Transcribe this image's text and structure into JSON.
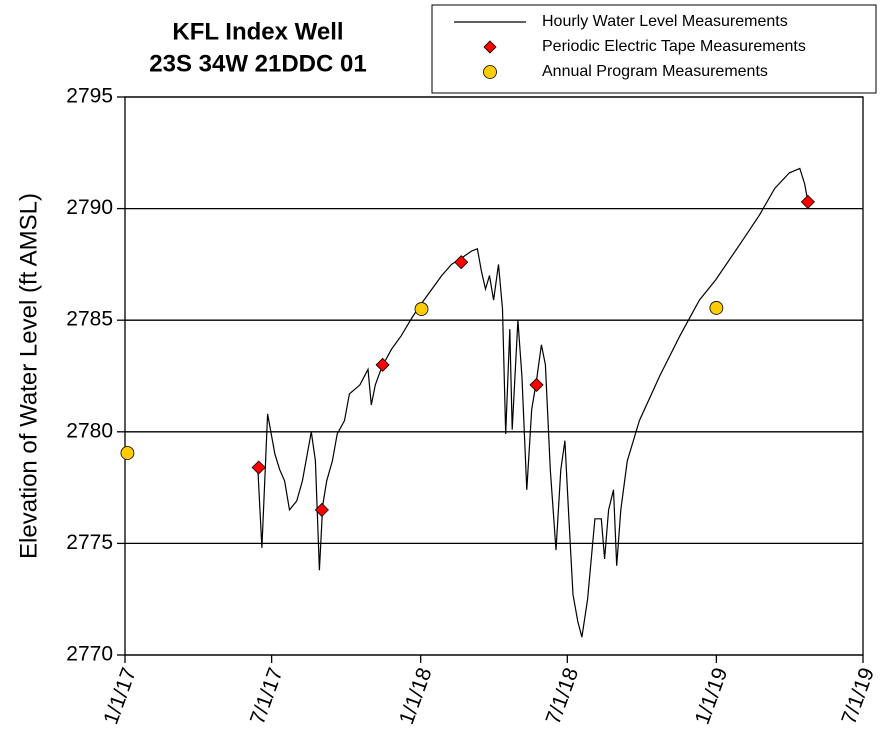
{
  "chart_data": {
    "type": "line",
    "title": "KFL Index Well",
    "subtitle": "23S 34W 21DDC 01",
    "ylabel": "Elevation of Water Level (ft AMSL)",
    "ylim": [
      2770,
      2795
    ],
    "yticks": [
      2770,
      2775,
      2780,
      2785,
      2790,
      2795
    ],
    "xlim": [
      "2017-01-01",
      "2019-07-01"
    ],
    "xticks": [
      {
        "value": "2017-01-01",
        "label": "1/1/17"
      },
      {
        "value": "2017-07-01",
        "label": "7/1/17"
      },
      {
        "value": "2018-01-01",
        "label": "1/1/18"
      },
      {
        "value": "2018-07-01",
        "label": "7/1/18"
      },
      {
        "value": "2019-01-01",
        "label": "1/1/19"
      },
      {
        "value": "2019-07-01",
        "label": "7/1/19"
      }
    ],
    "grid": true,
    "legend": "top-right",
    "series": [
      {
        "name": "Hourly Water Level Measurements",
        "style": "line",
        "color": "#000000",
        "x": [
          "2017-06-14",
          "2017-06-19",
          "2017-06-26",
          "2017-07-05",
          "2017-07-11",
          "2017-07-17",
          "2017-07-23",
          "2017-08-01",
          "2017-08-08",
          "2017-08-19",
          "2017-08-24",
          "2017-08-29",
          "2017-09-02",
          "2017-09-07",
          "2017-09-14",
          "2017-09-20",
          "2017-09-29",
          "2017-10-05",
          "2017-10-18",
          "2017-10-28",
          "2017-11-01",
          "2017-11-06",
          "2017-11-14",
          "2017-11-26",
          "2017-12-08",
          "2017-12-21",
          "2018-01-01",
          "2018-01-15",
          "2018-01-27",
          "2018-02-08",
          "2018-02-21",
          "2018-03-05",
          "2018-03-12",
          "2018-03-17",
          "2018-03-22",
          "2018-03-27",
          "2018-04-01",
          "2018-04-07",
          "2018-04-12",
          "2018-04-16",
          "2018-04-21",
          "2018-04-24",
          "2018-05-01",
          "2018-05-06",
          "2018-05-12",
          "2018-05-18",
          "2018-05-24",
          "2018-05-30",
          "2018-06-04",
          "2018-06-10",
          "2018-06-17",
          "2018-06-23",
          "2018-06-28",
          "2018-07-03",
          "2018-07-08",
          "2018-07-14",
          "2018-07-19",
          "2018-07-26",
          "2018-08-04",
          "2018-08-12",
          "2018-08-16",
          "2018-08-21",
          "2018-08-27",
          "2018-08-31",
          "2018-09-05",
          "2018-09-13",
          "2018-09-28",
          "2018-10-23",
          "2018-11-17",
          "2018-12-11",
          "2018-12-31",
          "2019-01-30",
          "2019-02-23",
          "2019-03-14",
          "2019-04-01",
          "2019-04-14",
          "2019-04-20",
          "2019-04-24"
        ],
        "values": [
          2778.3,
          2774.8,
          2780.8,
          2779.0,
          2778.3,
          2777.8,
          2776.5,
          2776.9,
          2777.8,
          2780.0,
          2778.7,
          2773.8,
          2776.7,
          2777.8,
          2778.7,
          2779.9,
          2780.5,
          2781.7,
          2782.1,
          2782.8,
          2781.2,
          2782.1,
          2782.9,
          2783.7,
          2784.3,
          2785.1,
          2785.7,
          2786.4,
          2787.0,
          2787.5,
          2787.8,
          2788.1,
          2788.2,
          2787.2,
          2786.4,
          2787.0,
          2785.9,
          2787.5,
          2785.5,
          2779.9,
          2784.6,
          2780.1,
          2785.0,
          2782.5,
          2777.4,
          2781.0,
          2782.3,
          2783.9,
          2783.0,
          2778.3,
          2774.7,
          2778.3,
          2779.6,
          2776.1,
          2772.7,
          2771.5,
          2770.8,
          2772.5,
          2776.1,
          2776.1,
          2774.3,
          2776.5,
          2777.4,
          2774.0,
          2776.5,
          2778.7,
          2780.5,
          2782.5,
          2784.3,
          2785.9,
          2786.8,
          2788.4,
          2789.7,
          2790.9,
          2791.6,
          2791.8,
          2791.1,
          2790.3
        ]
      },
      {
        "name": "Periodic Electric Tape Measurements",
        "style": "diamond",
        "color": "#ff0000",
        "x": [
          "2017-06-15",
          "2017-09-01",
          "2017-11-15",
          "2018-02-20",
          "2018-05-24",
          "2019-04-24"
        ],
        "values": [
          2778.4,
          2776.5,
          2783.0,
          2787.6,
          2782.1,
          2790.3
        ]
      },
      {
        "name": "Annual Program Measurements",
        "style": "circle",
        "color": "#ffcc00",
        "x": [
          "2017-01-04",
          "2018-01-02",
          "2019-01-01"
        ],
        "values": [
          2779.05,
          2785.5,
          2785.55
        ]
      }
    ]
  }
}
